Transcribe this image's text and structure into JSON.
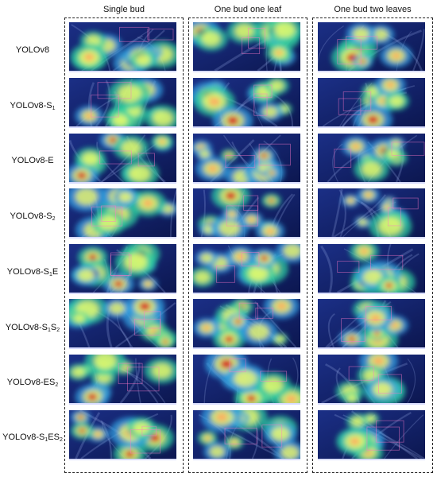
{
  "columns": [
    "Single bud",
    "One bud one leaf",
    "One bud two leaves"
  ],
  "rows": [
    {
      "base": "YOLOv8",
      "s1": "",
      "mid": "",
      "s2": "",
      "tail": ""
    },
    {
      "base": "YOLOv8-S",
      "s1": "1",
      "mid": "",
      "s2": "",
      "tail": ""
    },
    {
      "base": "YOLOv8-E",
      "s1": "",
      "mid": "",
      "s2": "",
      "tail": ""
    },
    {
      "base": "YOLOv8-S",
      "s1": "2",
      "mid": "",
      "s2": "",
      "tail": ""
    },
    {
      "base": "YOLOv8-S",
      "s1": "1",
      "mid": "E",
      "s2": "",
      "tail": ""
    },
    {
      "base": "YOLOv8-S",
      "s1": "1",
      "mid": "S",
      "s2": "2",
      "tail": ""
    },
    {
      "base": "YOLOv8-ES",
      "s1": "2",
      "mid": "",
      "s2": "",
      "tail": ""
    },
    {
      "base": "YOLOv8-S",
      "s1": "1",
      "mid": "ES",
      "s2": "2",
      "tail": ""
    }
  ],
  "image_description": "Grid of heat-map overlays (Grad-CAM style) on tea shoot photographs: 8 model variants (rows) by 3 shoot categories (columns).",
  "colors": {
    "background": "#0f1f63",
    "hot": "#d7191c",
    "warm": "#fdae61",
    "mid": "#ffff66",
    "cool": "#2ecfa0",
    "cyan": "#30a0e0"
  }
}
